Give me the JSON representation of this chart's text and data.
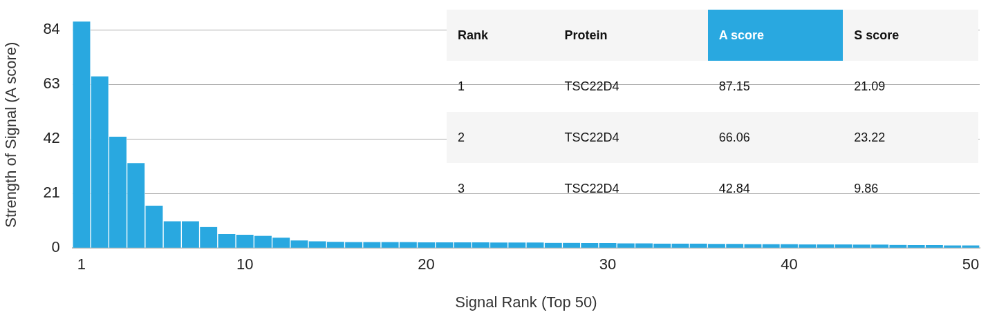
{
  "chart_data": {
    "type": "bar",
    "xlabel": "Signal Rank (Top 50)",
    "ylabel": "Strength of Signal (A score)",
    "x": [
      1,
      2,
      3,
      4,
      5,
      6,
      7,
      8,
      9,
      10,
      11,
      12,
      13,
      14,
      15,
      16,
      17,
      18,
      19,
      20,
      21,
      22,
      23,
      24,
      25,
      26,
      27,
      28,
      29,
      30,
      31,
      32,
      33,
      34,
      35,
      36,
      37,
      38,
      39,
      40,
      41,
      42,
      43,
      44,
      45,
      46,
      47,
      48,
      49,
      50
    ],
    "values": [
      87.15,
      66.06,
      42.84,
      32.7,
      16.3,
      10.3,
      10.3,
      8.1,
      5.4,
      5.1,
      4.7,
      4.0,
      2.9,
      2.6,
      2.4,
      2.3,
      2.3,
      2.3,
      2.3,
      2.2,
      2.2,
      2.2,
      2.2,
      2.1,
      2.1,
      2.1,
      2.0,
      2.0,
      1.9,
      1.9,
      1.8,
      1.8,
      1.7,
      1.7,
      1.7,
      1.6,
      1.6,
      1.5,
      1.5,
      1.5,
      1.4,
      1.4,
      1.4,
      1.3,
      1.3,
      1.2,
      1.1,
      1.1,
      1.0,
      1.0
    ],
    "color": "#29a8e0",
    "xlim": [
      0.5,
      50.5
    ],
    "xticks": [
      1,
      10,
      20,
      30,
      40,
      50
    ],
    "ylim": [
      0,
      87.15
    ],
    "yticks": [
      0,
      21,
      42,
      63,
      84
    ],
    "grid": "y",
    "legend": false,
    "annotations": [
      "Rank",
      "Protein",
      "A score",
      "S score",
      "1",
      "TSC22D4",
      "87.15",
      "21.09",
      "2",
      "TSC22D4",
      "66.06",
      "23.22",
      "3",
      "TSC22D4",
      "42.84",
      "9.86"
    ]
  }
}
